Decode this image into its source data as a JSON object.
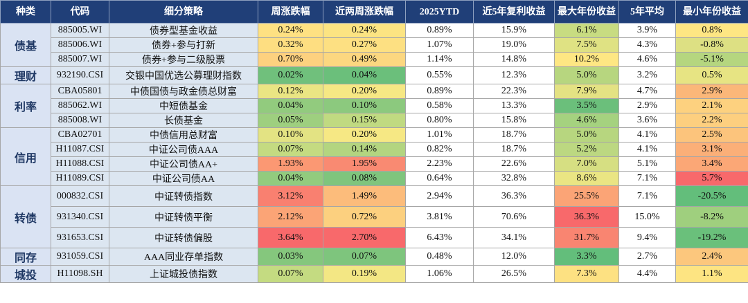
{
  "table": {
    "header": [
      "种类",
      "代码",
      "细分策略",
      "周涨跌幅",
      "近两周涨跌幅",
      "2025YTD",
      "近5年复利收益",
      "最大年份收益",
      "5年平均",
      "最小年份收益"
    ],
    "groups": [
      {
        "label": "债基",
        "rows": [
          {
            "cells": [
              "885005.WI",
              "债券型基金收益",
              "0.24%",
              "0.24%",
              "0.89%",
              "15.9%",
              "6.1%",
              "3.9%",
              "0.8%"
            ],
            "fills": [
              null,
              null,
              "#fee182",
              "#fce482",
              null,
              null,
              "#c8dc81",
              null,
              "#fee683"
            ]
          },
          {
            "cells": [
              "885006.WI",
              "债券+参与打新",
              "0.32%",
              "0.27%",
              "1.07%",
              "19.0%",
              "7.5%",
              "4.3%",
              "-0.8%"
            ],
            "fills": [
              null,
              null,
              "#fede81",
              "#fde082",
              null,
              null,
              "#dfe283",
              null,
              "#dde083"
            ]
          },
          {
            "cells": [
              "885007.WI",
              "债券+参与二级股票",
              "0.70%",
              "0.49%",
              "1.14%",
              "14.8%",
              "10.2%",
              "4.6%",
              "-5.1%"
            ],
            "fills": [
              null,
              null,
              "#fdd17f",
              "#fcd780",
              null,
              null,
              "#fee783",
              null,
              "#b5d67f"
            ]
          }
        ]
      },
      {
        "label": "理财",
        "rows": [
          {
            "cells": [
              "932190.CSI",
              "交银中国优选公募理财指数",
              "0.02%",
              "0.04%",
              "0.55%",
              "12.3%",
              "5.0%",
              "3.2%",
              "0.5%"
            ],
            "fills": [
              null,
              null,
              "#70c07c",
              "#6bbf7b",
              null,
              null,
              "#b7d67f",
              null,
              "#e7e483"
            ]
          }
        ]
      },
      {
        "label": "利率",
        "rows": [
          {
            "cells": [
              "CBA05801",
              "中债国债与政金债总财富",
              "0.12%",
              "0.20%",
              "0.89%",
              "22.3%",
              "7.9%",
              "4.7%",
              "2.9%"
            ],
            "fills": [
              null,
              null,
              "#eae583",
              "#f6e884",
              null,
              null,
              "#e4e283",
              null,
              "#fbb779"
            ]
          },
          {
            "cells": [
              "885062.WI",
              "中短债基金",
              "0.04%",
              "0.10%",
              "0.58%",
              "13.3%",
              "3.5%",
              "2.9%",
              "2.1%"
            ],
            "fills": [
              null,
              null,
              "#92cb7e",
              "#8cc97e",
              null,
              null,
              "#6bbf7b",
              null,
              "#fdd17f"
            ]
          },
          {
            "cells": [
              "885008.WI",
              "长债基金",
              "0.05%",
              "0.15%",
              "0.80%",
              "15.8%",
              "4.6%",
              "3.6%",
              "2.2%"
            ],
            "fills": [
              null,
              null,
              "#9ecf7f",
              "#c0da81",
              null,
              null,
              "#a5d27f",
              null,
              "#fdcf7f"
            ]
          }
        ]
      },
      {
        "label": "信用",
        "rows": [
          {
            "cells": [
              "CBA02701",
              "中债信用总财富",
              "0.10%",
              "0.20%",
              "1.01%",
              "18.7%",
              "5.0%",
              "4.1%",
              "2.5%"
            ],
            "fills": [
              null,
              null,
              "#e3e383",
              "#f6e884",
              null,
              null,
              "#b7d67f",
              null,
              "#fcc47c"
            ]
          },
          {
            "cells": [
              "H11087.CSI",
              "中证公司债AAA",
              "0.07%",
              "0.14%",
              "0.82%",
              "18.7%",
              "5.2%",
              "4.1%",
              "3.1%"
            ],
            "fills": [
              null,
              null,
              "#c4db81",
              "#b3d580",
              null,
              null,
              "#bcd881",
              null,
              "#fbaf78"
            ]
          },
          {
            "cells": [
              "H11088.CSI",
              "中证公司债AA+",
              "1.93%",
              "1.95%",
              "2.23%",
              "22.6%",
              "7.0%",
              "5.1%",
              "3.4%"
            ],
            "fills": [
              null,
              null,
              "#fb9873",
              "#f98a72",
              null,
              null,
              "#d6df82",
              null,
              "#fba776"
            ]
          },
          {
            "cells": [
              "H11089.CSI",
              "中证公司债AA",
              "0.04%",
              "0.08%",
              "0.64%",
              "32.8%",
              "8.6%",
              "7.1%",
              "5.7%"
            ],
            "fills": [
              null,
              null,
              "#92cb7e",
              "#7fc57d",
              null,
              null,
              "#eae583",
              null,
              "#f8696b"
            ]
          }
        ]
      },
      {
        "label": "转债",
        "rows": [
          {
            "cells": [
              "000832.CSI",
              "中证转债指数",
              "3.12%",
              "1.49%",
              "2.94%",
              "36.3%",
              "25.5%",
              "7.1%",
              "-20.5%"
            ],
            "fills": [
              null,
              null,
              "#f98070",
              "#fcbc7b",
              null,
              null,
              "#fba476",
              null,
              "#63be7b"
            ]
          },
          {
            "cells": [
              "931340.CSI",
              "中证转债平衡",
              "2.12%",
              "0.72%",
              "3.81%",
              "70.6%",
              "36.3%",
              "15.0%",
              "-8.2%"
            ],
            "fills": [
              null,
              null,
              "#fba476",
              "#fcd07f",
              null,
              null,
              "#f8696b",
              null,
              "#9fcf7e"
            ]
          },
          {
            "cells": [
              "931653.CSI",
              "中证转债偏股",
              "3.64%",
              "2.70%",
              "6.43%",
              "34.1%",
              "31.7%",
              "9.4%",
              "-19.2%"
            ],
            "fills": [
              null,
              null,
              "#f8696b",
              "#f8696b",
              null,
              null,
              "#f98571",
              null,
              "#6ac07b"
            ]
          }
        ]
      },
      {
        "label": "同存",
        "rows": [
          {
            "cells": [
              "931059.CSI",
              "AAA同业存单指数",
              "0.03%",
              "0.07%",
              "0.48%",
              "12.0%",
              "3.3%",
              "2.7%",
              "2.4%"
            ],
            "fills": [
              null,
              null,
              "#85c77d",
              "#7ec57d",
              null,
              null,
              "#63be7b",
              null,
              "#fcc77d"
            ]
          }
        ]
      },
      {
        "label": "城投",
        "rows": [
          {
            "cells": [
              "H11098.SH",
              "上证城投债指数",
              "0.07%",
              "0.19%",
              "1.06%",
              "26.5%",
              "7.3%",
              "4.4%",
              "1.1%"
            ],
            "fills": [
              null,
              null,
              "#c4db81",
              "#f3e784",
              null,
              null,
              "#fde182",
              null,
              "#fde482"
            ]
          }
        ]
      }
    ]
  }
}
